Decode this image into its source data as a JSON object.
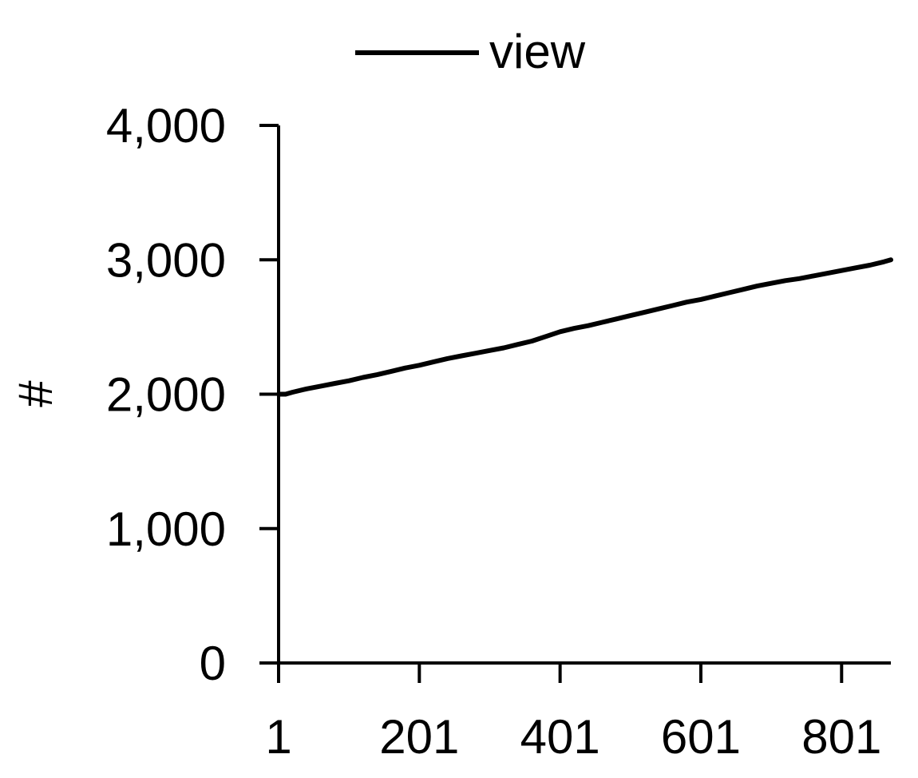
{
  "chart_data": {
    "type": "line",
    "title": "",
    "xlabel": "",
    "ylabel": "#",
    "xlim": [
      1,
      871
    ],
    "ylim": [
      0,
      4000
    ],
    "x_ticks": [
      1,
      201,
      401,
      601,
      801
    ],
    "x_tick_labels": [
      "1",
      "201",
      "401",
      "601",
      "801"
    ],
    "y_ticks": [
      0,
      1000,
      2000,
      3000,
      4000
    ],
    "y_tick_labels": [
      "0",
      "1,000",
      "2,000",
      "3,000",
      "4,000"
    ],
    "grid": false,
    "legend": "top-center",
    "series": [
      {
        "name": "view",
        "color": "#000000",
        "x": [
          1,
          11,
          21,
          41,
          61,
          81,
          101,
          121,
          141,
          161,
          181,
          201,
          221,
          241,
          261,
          281,
          301,
          321,
          341,
          361,
          381,
          401,
          421,
          441,
          461,
          481,
          501,
          521,
          541,
          561,
          581,
          601,
          621,
          641,
          661,
          681,
          701,
          721,
          741,
          761,
          781,
          801,
          821,
          841,
          861,
          871
        ],
        "y": [
          2000,
          2000,
          2015,
          2040,
          2060,
          2080,
          2100,
          2125,
          2145,
          2170,
          2195,
          2215,
          2240,
          2265,
          2285,
          2305,
          2325,
          2345,
          2370,
          2395,
          2430,
          2465,
          2490,
          2510,
          2535,
          2560,
          2585,
          2610,
          2635,
          2660,
          2685,
          2705,
          2730,
          2755,
          2780,
          2805,
          2825,
          2845,
          2860,
          2880,
          2900,
          2920,
          2940,
          2960,
          2985,
          3000
        ]
      }
    ]
  }
}
